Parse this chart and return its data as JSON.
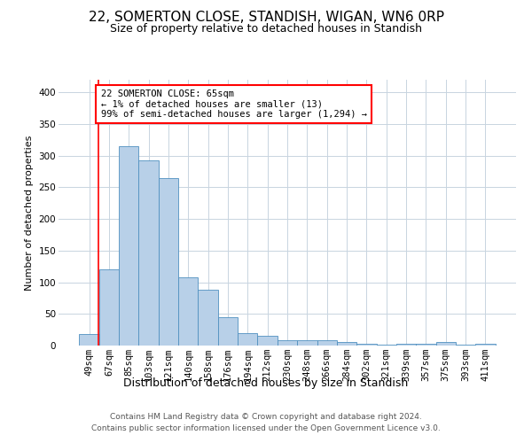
{
  "title1": "22, SOMERTON CLOSE, STANDISH, WIGAN, WN6 0RP",
  "title2": "Size of property relative to detached houses in Standish",
  "xlabel": "Distribution of detached houses by size in Standish",
  "ylabel": "Number of detached properties",
  "categories": [
    "49sqm",
    "67sqm",
    "85sqm",
    "103sqm",
    "121sqm",
    "140sqm",
    "158sqm",
    "176sqm",
    "194sqm",
    "212sqm",
    "230sqm",
    "248sqm",
    "266sqm",
    "284sqm",
    "302sqm",
    "321sqm",
    "339sqm",
    "357sqm",
    "375sqm",
    "393sqm",
    "411sqm"
  ],
  "values": [
    18,
    120,
    315,
    293,
    265,
    108,
    88,
    45,
    20,
    15,
    9,
    8,
    8,
    5,
    3,
    1,
    3,
    3,
    5,
    1,
    3
  ],
  "bar_color": "#b8d0e8",
  "bar_edge_color": "#5090c0",
  "annotation_text": "22 SOMERTON CLOSE: 65sqm\n← 1% of detached houses are smaller (13)\n99% of semi-detached houses are larger (1,294) →",
  "red_line_x": 0.48,
  "ylim_max": 420,
  "yticks": [
    0,
    50,
    100,
    150,
    200,
    250,
    300,
    350,
    400
  ],
  "footer_line1": "Contains HM Land Registry data © Crown copyright and database right 2024.",
  "footer_line2": "Contains public sector information licensed under the Open Government Licence v3.0.",
  "bg_color": "#ffffff",
  "grid_color": "#c8d4e0",
  "title1_fontsize": 11,
  "title2_fontsize": 9,
  "xlabel_fontsize": 9,
  "ylabel_fontsize": 8,
  "tick_fontsize": 7.5,
  "annot_fontsize": 7.5,
  "footer_fontsize": 6.5
}
